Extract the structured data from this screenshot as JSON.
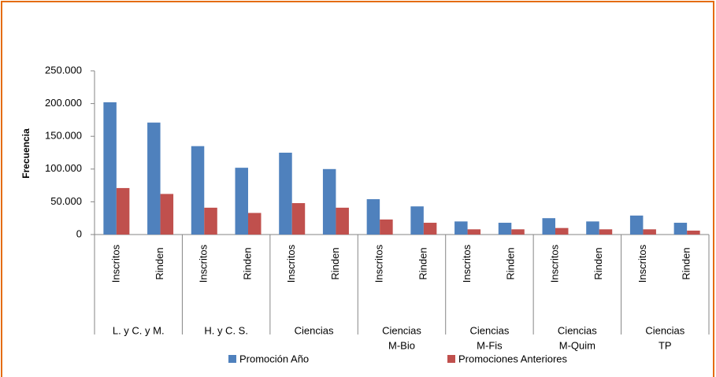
{
  "chart_data": {
    "type": "bar",
    "y_label": "Frecuencia",
    "categories": [
      "Inscritos",
      "Rinden",
      "Inscritos",
      "Rinden",
      "Inscritos",
      "Rinden",
      "Inscritos",
      "Rinden",
      "Inscritos",
      "Rinden",
      "Inscritos",
      "Rinden",
      "Inscritos",
      "Rinden"
    ],
    "groups": [
      [
        "L. y C. y M."
      ],
      [
        "H. y C. S."
      ],
      [
        "Ciencias"
      ],
      [
        "Ciencias",
        "M-Bio"
      ],
      [
        "Ciencias",
        "M-Fis"
      ],
      [
        "Ciencias",
        "M-Quim"
      ],
      [
        "Ciencias",
        "TP"
      ]
    ],
    "series": [
      {
        "name": "Promoción Año",
        "color": "#4f81bd",
        "values": [
          202000,
          171000,
          135000,
          102000,
          125000,
          100000,
          54000,
          43000,
          20000,
          18000,
          25000,
          20000,
          29000,
          18000
        ]
      },
      {
        "name": "Promociones Anteriores",
        "color": "#c0504d",
        "values": [
          71000,
          62000,
          41000,
          33000,
          48000,
          41000,
          23000,
          18000,
          8000,
          8000,
          10000,
          8000,
          8000,
          6000
        ]
      }
    ],
    "ylim": [
      0,
      250000
    ],
    "yticks": [
      0,
      {
        "value": 50000,
        "label": "50.000"
      },
      {
        "value": 100000,
        "label": "100.000"
      },
      {
        "value": 150000,
        "label": "150.000"
      },
      {
        "value": 200000,
        "label": "200.000"
      },
      {
        "value": 250000,
        "label": "250.000"
      }
    ],
    "legend": "bottom"
  }
}
